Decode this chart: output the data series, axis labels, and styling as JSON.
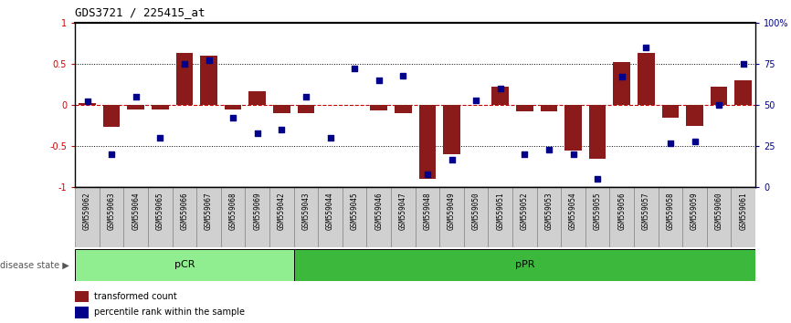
{
  "title": "GDS3721 / 225415_at",
  "samples": [
    "GSM559062",
    "GSM559063",
    "GSM559064",
    "GSM559065",
    "GSM559066",
    "GSM559067",
    "GSM559068",
    "GSM559069",
    "GSM559042",
    "GSM559043",
    "GSM559044",
    "GSM559045",
    "GSM559046",
    "GSM559047",
    "GSM559048",
    "GSM559049",
    "GSM559050",
    "GSM559051",
    "GSM559052",
    "GSM559053",
    "GSM559054",
    "GSM559055",
    "GSM559056",
    "GSM559057",
    "GSM559058",
    "GSM559059",
    "GSM559060",
    "GSM559061"
  ],
  "bar_values": [
    0.02,
    -0.27,
    -0.05,
    -0.05,
    0.63,
    0.6,
    -0.05,
    0.17,
    -0.1,
    -0.1,
    0.0,
    0.0,
    -0.07,
    -0.1,
    -0.9,
    -0.6,
    0.0,
    0.22,
    -0.08,
    -0.08,
    -0.55,
    -0.65,
    0.52,
    0.63,
    -0.15,
    -0.25,
    0.22,
    0.3
  ],
  "dot_values": [
    52,
    20,
    55,
    30,
    75,
    77,
    42,
    33,
    35,
    55,
    30,
    72,
    65,
    68,
    8,
    17,
    53,
    60,
    20,
    23,
    20,
    5,
    67,
    85,
    27,
    28,
    50,
    75
  ],
  "pcr_count": 9,
  "ppr_count": 19,
  "ylim": [
    -1,
    1
  ],
  "yticks_left": [
    -1,
    -0.5,
    0,
    0.5,
    1
  ],
  "ytick_labels_left": [
    "-1",
    "-0.5",
    "0",
    "0.5",
    "1"
  ],
  "yticks_right": [
    0,
    25,
    50,
    75,
    100
  ],
  "ytick_labels_right": [
    "0",
    "25",
    "50",
    "75",
    "100%"
  ],
  "bar_color": "#8B1A1A",
  "dot_color": "#00008B",
  "zero_line_color": "#cc0000",
  "dotted_line_color": "black",
  "background_color": "#ffffff",
  "pcr_color": "#90EE90",
  "ppr_color": "#3CB83C",
  "label_bar": "transformed count",
  "label_dot": "percentile rank within the sample",
  "disease_state_label": "disease state"
}
